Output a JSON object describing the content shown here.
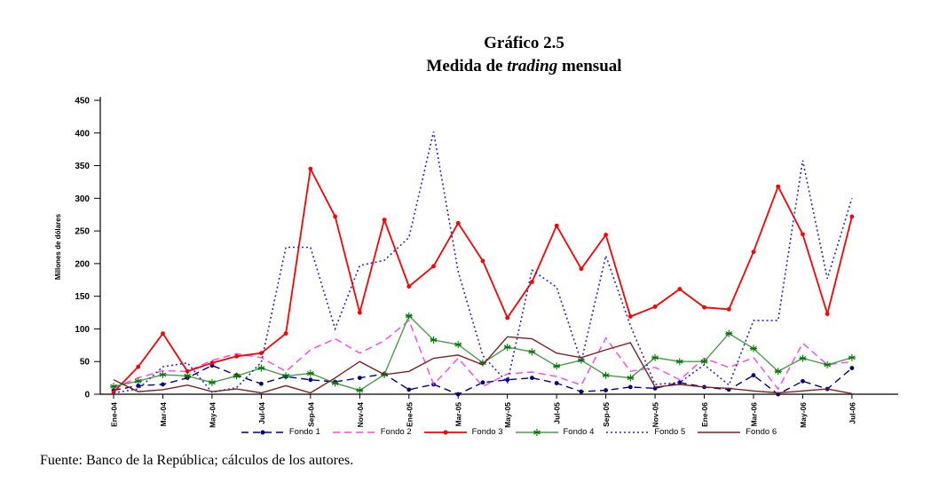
{
  "title": {
    "line1": "Gráfico 2.5",
    "line2_pre": "Medida de ",
    "line2_italic": "trading",
    "line2_post": " mensual"
  },
  "footer": {
    "source": "Fuente: Banco de la República; cálculos de los autores."
  },
  "chart_data": {
    "type": "line",
    "title": "Medida de trading mensual",
    "ylabel": "Millones de dólares",
    "xlabel": "",
    "ylim": [
      0,
      450
    ],
    "ytick_step": 50,
    "grid": false,
    "legend_position": "bottom",
    "x": [
      "Ene-04",
      "Feb-04",
      "Mar-04",
      "Abr-04",
      "May-04",
      "Jun-04",
      "Jul-04",
      "Ago-04",
      "Sep-04",
      "Oct-04",
      "Nov-04",
      "Dic-04",
      "Ene-05",
      "Feb-05",
      "Mar-05",
      "Abr-05",
      "May-05",
      "Jun-05",
      "Jul-05",
      "Ago-05",
      "Sep-05",
      "Oct-05",
      "Nov-05",
      "Dic-05",
      "Ene-06",
      "Feb-06",
      "Mar-06",
      "Abr-06",
      "May-06",
      "Jun-06",
      "Jul-06"
    ],
    "xticks_shown": [
      "Ene-04",
      "Mar-04",
      "May-04",
      "Jul-04",
      "Sep-04",
      "Nov-04",
      "Ene-05",
      "Mar-05",
      "May-05",
      "Jul-05",
      "Sep-05",
      "Nov-05",
      "Ene-06",
      "Mar-06",
      "May-06",
      "Jul-06"
    ],
    "series": [
      {
        "name": "Fondo 1",
        "color": "#000080",
        "line": "dashed",
        "marker": "circle",
        "width": 1.4,
        "values": [
          6,
          13,
          15,
          25,
          44,
          29,
          16,
          27,
          22,
          19,
          25,
          31,
          7,
          15,
          0,
          18,
          22,
          25,
          17,
          4,
          6,
          11,
          9,
          18,
          11,
          7,
          29,
          0,
          20,
          8,
          40
        ]
      },
      {
        "name": "Fondo 2",
        "color": "#FF44F0",
        "line": "dashed",
        "marker": "none",
        "width": 1.4,
        "values": [
          10,
          25,
          36,
          35,
          52,
          62,
          56,
          35,
          68,
          85,
          63,
          82,
          113,
          15,
          55,
          12,
          31,
          34,
          27,
          14,
          86,
          35,
          41,
          22,
          55,
          41,
          56,
          8,
          78,
          45,
          50
        ]
      },
      {
        "name": "Fondo 3",
        "color": "#FF0000",
        "line": "solid",
        "marker": "circle",
        "width": 1.8,
        "values": [
          3,
          42,
          93,
          35,
          48,
          58,
          63,
          93,
          345,
          272,
          125,
          267,
          165,
          196,
          262,
          204,
          117,
          172,
          258,
          192,
          244,
          119,
          134,
          161,
          133,
          130,
          218,
          318,
          245,
          123,
          272
        ]
      },
      {
        "name": "Fondo 4",
        "color": "#4E9B4E",
        "marker_color": "#007700",
        "line": "solid",
        "marker": "asterisk",
        "width": 1.4,
        "values": [
          12,
          20,
          30,
          28,
          18,
          28,
          40,
          28,
          32,
          17,
          6,
          30,
          120,
          83,
          76,
          48,
          72,
          65,
          43,
          52,
          29,
          25,
          56,
          50,
          50,
          93,
          70,
          35,
          55,
          45,
          56
        ]
      },
      {
        "name": "Fondo 5",
        "color": "#2828CC",
        "line": "dotted",
        "marker": "none",
        "width": 1.6,
        "values": [
          2,
          8,
          42,
          48,
          3,
          10,
          49,
          225,
          225,
          100,
          197,
          205,
          240,
          402,
          188,
          59,
          18,
          190,
          164,
          50,
          212,
          105,
          15,
          18,
          45,
          14,
          113,
          113,
          358,
          177,
          300
        ]
      },
      {
        "name": "Fondo 6",
        "color": "#7C2222",
        "line": "solid",
        "marker": "none",
        "width": 1.4,
        "values": [
          22,
          4,
          7,
          14,
          4,
          8,
          2,
          13,
          2,
          25,
          50,
          30,
          35,
          55,
          60,
          45,
          88,
          85,
          63,
          56,
          68,
          79,
          11,
          15,
          11,
          9,
          5,
          2,
          5,
          8,
          1
        ]
      }
    ]
  }
}
